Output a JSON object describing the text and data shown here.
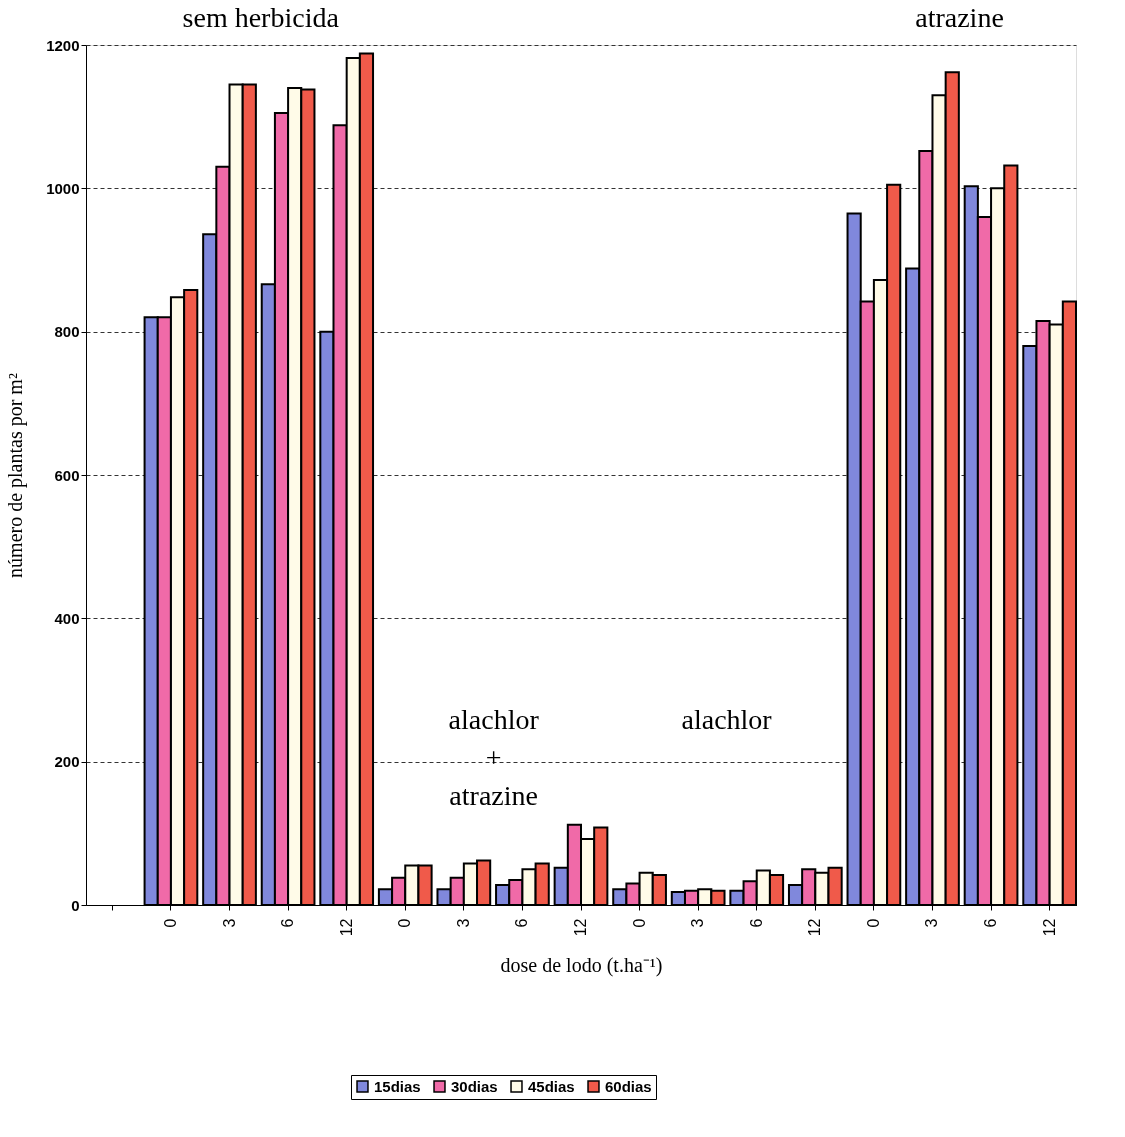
{
  "chart_data": {
    "type": "bar",
    "xlabel": "dose de lodo (t.ha⁻¹)",
    "ylabel": "número de plantas por m²",
    "categories": [
      null,
      "0",
      "3",
      "6",
      "12",
      "0",
      "3",
      "6",
      "12",
      "0",
      "3",
      "6",
      "12",
      "0",
      "3",
      "6",
      "12"
    ],
    "series": [
      {
        "name": "15dias",
        "color": "#8088dc",
        "values": [
          null,
          820,
          936,
          866,
          800,
          22,
          22,
          28,
          52,
          22,
          18,
          20,
          28,
          965,
          888,
          1003,
          780
        ]
      },
      {
        "name": "30dias",
        "color": "#f06aa8",
        "values": [
          null,
          820,
          1030,
          1105,
          1088,
          38,
          38,
          35,
          112,
          30,
          20,
          33,
          50,
          842,
          1052,
          960,
          815
        ]
      },
      {
        "name": "45dias",
        "color": "#fffbe8",
        "values": [
          null,
          848,
          1145,
          1140,
          1182,
          55,
          58,
          50,
          92,
          45,
          22,
          48,
          45,
          872,
          1130,
          1000,
          810
        ]
      },
      {
        "name": "60dias",
        "color": "#f05a4a",
        "values": [
          null,
          858,
          1145,
          1138,
          1188,
          55,
          62,
          58,
          108,
          42,
          20,
          42,
          52,
          1005,
          1162,
          1032,
          842
        ]
      }
    ],
    "ylim": [
      0,
      1200
    ],
    "yticks": [
      0,
      200,
      400,
      600,
      800,
      {
        "value": 1000,
        "label": "1000"
      },
      {
        "value": 1200,
        "label": "1200"
      }
    ],
    "grid": "y",
    "legend": "bottom",
    "annotations": [
      "sem herbicida",
      "alachlor\n+\natrazine",
      "alachlor",
      "atrazine"
    ]
  }
}
